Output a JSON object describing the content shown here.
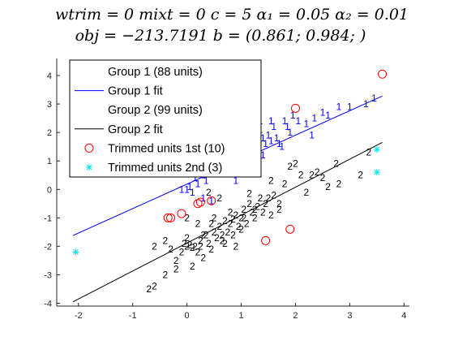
{
  "title": {
    "line1": "wtrim = 0    mixt = 0    c = 5    α₁ = 0.05    α₂ = 0.01",
    "line2": "obj = −213.7191    b = (0.861; 0.984; )"
  },
  "colors": {
    "group1": "#0000ff",
    "group2": "#000000",
    "trimmed1": "#ff0000",
    "trimmed2": "#00e5e5",
    "axis": "#262626"
  },
  "chart_data": {
    "type": "scatter",
    "xlim": [
      -2.4,
      4.1
    ],
    "ylim": [
      -4.1,
      4.6
    ],
    "x_ticks": [
      -2,
      -1,
      0,
      1,
      2,
      3,
      4
    ],
    "y_ticks": [
      -4,
      -3,
      -2,
      -1,
      0,
      1,
      2,
      3,
      4
    ],
    "grid": false,
    "legend_position": "top-left",
    "legend": [
      {
        "label": "Group 1 (88 units)",
        "marker": "1"
      },
      {
        "label": "Group 1 fit",
        "marker": "blue-line"
      },
      {
        "label": "Group 2 (99 units)",
        "marker": "2"
      },
      {
        "label": "Group 2 fit",
        "marker": "black-line"
      },
      {
        "label": "Trimmed units 1st (10)",
        "marker": "red-circle"
      },
      {
        "label": "Trimmed units 2nd (3)",
        "marker": "cyan-asterisk"
      }
    ],
    "series": [
      {
        "name": "Group 1 (88 units)",
        "marker_label": "1",
        "points": [
          [
            0.0,
            0.0
          ],
          [
            0.05,
            0.1
          ],
          [
            0.1,
            -0.1
          ],
          [
            0.2,
            0.2
          ],
          [
            0.3,
            0.5
          ],
          [
            0.35,
            0.3
          ],
          [
            0.4,
            0.8
          ],
          [
            0.45,
            0.6
          ],
          [
            0.5,
            1.2
          ],
          [
            0.55,
            1.0
          ],
          [
            0.6,
            0.9
          ],
          [
            0.65,
            1.3
          ],
          [
            0.7,
            1.1
          ],
          [
            0.75,
            1.5
          ],
          [
            0.8,
            1.4
          ],
          [
            0.85,
            1.6
          ],
          [
            0.9,
            1.8
          ],
          [
            0.95,
            1.5
          ],
          [
            1.0,
            1.7
          ],
          [
            1.05,
            1.9
          ],
          [
            1.1,
            2.2
          ],
          [
            1.15,
            1.6
          ],
          [
            1.2,
            1.9
          ],
          [
            1.25,
            2.0
          ],
          [
            1.3,
            1.7
          ],
          [
            1.35,
            2.1
          ],
          [
            1.4,
            1.8
          ],
          [
            1.45,
            1.6
          ],
          [
            1.5,
            1.9
          ],
          [
            1.55,
            1.7
          ],
          [
            1.6,
            2.2
          ],
          [
            1.65,
            1.8
          ],
          [
            1.7,
            1.6
          ],
          [
            1.75,
            1.5
          ],
          [
            1.8,
            2.4
          ],
          [
            1.85,
            2.2
          ],
          [
            1.9,
            2.0
          ],
          [
            1.95,
            2.6
          ],
          [
            2.05,
            2.4
          ],
          [
            2.2,
            2.3
          ],
          [
            2.35,
            2.5
          ],
          [
            2.5,
            2.7
          ],
          [
            2.6,
            2.6
          ],
          [
            2.8,
            2.9
          ],
          [
            3.0,
            2.9
          ],
          [
            3.3,
            3.0
          ],
          [
            3.45,
            3.2
          ],
          [
            0.9,
            0.3
          ],
          [
            1.2,
            1.3
          ],
          [
            0.6,
            1.6
          ],
          [
            1.4,
            1.2
          ],
          [
            0.3,
            -0.3
          ],
          [
            0.15,
            0.4
          ],
          [
            -0.1,
            0.0
          ],
          [
            1.0,
            2.3
          ],
          [
            1.25,
            1.4
          ],
          [
            2.3,
            1.9
          ],
          [
            0.45,
            -0.4
          ],
          [
            0.8,
            0.7
          ],
          [
            1.55,
            2.4
          ],
          [
            1.05,
            1.1
          ],
          [
            1.35,
            2.4
          ],
          [
            0.7,
            2.0
          ],
          [
            1.15,
            2.8
          ]
        ]
      },
      {
        "name": "Group 2 (99 units)",
        "marker_label": "2",
        "points": [
          [
            -0.7,
            -3.5
          ],
          [
            -0.6,
            -3.4
          ],
          [
            -0.4,
            -3.0
          ],
          [
            -0.2,
            -2.5
          ],
          [
            -0.1,
            -2.2
          ],
          [
            -0.05,
            -1.9
          ],
          [
            0.0,
            -2.0
          ],
          [
            0.05,
            -1.95
          ],
          [
            0.1,
            -2.05
          ],
          [
            0.15,
            -2.0
          ],
          [
            0.2,
            -2.2
          ],
          [
            0.25,
            -1.8
          ],
          [
            0.3,
            -2.4
          ],
          [
            0.35,
            -1.6
          ],
          [
            0.4,
            -1.9
          ],
          [
            0.45,
            -2.1
          ],
          [
            0.5,
            -1.5
          ],
          [
            0.55,
            -1.7
          ],
          [
            0.6,
            -1.3
          ],
          [
            0.65,
            -1.8
          ],
          [
            0.7,
            -1.1
          ],
          [
            0.75,
            -1.5
          ],
          [
            0.8,
            -1.2
          ],
          [
            0.85,
            -1.6
          ],
          [
            0.9,
            -0.9
          ],
          [
            0.95,
            -1.3
          ],
          [
            1.0,
            -1.0
          ],
          [
            1.05,
            -0.7
          ],
          [
            1.1,
            -1.2
          ],
          [
            1.15,
            -0.5
          ],
          [
            1.2,
            -0.8
          ],
          [
            1.25,
            -1.0
          ],
          [
            1.3,
            -0.6
          ],
          [
            1.35,
            -0.3
          ],
          [
            1.4,
            -0.8
          ],
          [
            1.45,
            -0.5
          ],
          [
            1.5,
            -0.3
          ],
          [
            1.55,
            -0.9
          ],
          [
            1.6,
            -0.2
          ],
          [
            1.7,
            -0.5
          ],
          [
            1.8,
            0.2
          ],
          [
            1.9,
            0.8
          ],
          [
            2.0,
            0.9
          ],
          [
            2.1,
            0.5
          ],
          [
            2.2,
            -0.1
          ],
          [
            2.3,
            0.5
          ],
          [
            2.4,
            0.6
          ],
          [
            2.5,
            0.4
          ],
          [
            2.6,
            0.1
          ],
          [
            2.75,
            0.9
          ],
          [
            2.8,
            0.2
          ],
          [
            3.2,
            0.5
          ],
          [
            3.35,
            1.3
          ],
          [
            -0.4,
            -1.8
          ],
          [
            -0.6,
            -2.0
          ],
          [
            -0.2,
            -2.8
          ],
          [
            0.0,
            -1.0
          ],
          [
            0.2,
            -1.2
          ],
          [
            0.1,
            -2.7
          ],
          [
            0.5,
            -1.0
          ],
          [
            1.0,
            -1.4
          ],
          [
            0.9,
            -2.0
          ],
          [
            0.6,
            -0.3
          ],
          [
            0.4,
            -0.1
          ],
          [
            1.25,
            -0.7
          ],
          [
            1.55,
            0.3
          ],
          [
            0.7,
            -1.9
          ],
          [
            0.3,
            -1.6
          ],
          [
            0.0,
            -1.7
          ],
          [
            -0.3,
            -2.1
          ],
          [
            0.8,
            -0.8
          ],
          [
            1.05,
            -1.0
          ],
          [
            0.45,
            -1.2
          ],
          [
            0.65,
            -1.6
          ],
          [
            0.25,
            -2.0
          ],
          [
            0.85,
            -1.05
          ],
          [
            1.15,
            -0.15
          ],
          [
            1.7,
            -0.7
          ]
        ]
      },
      {
        "name": "Trimmed units 1st (10)",
        "marker_label": "circle",
        "points": [
          [
            3.6,
            4.05
          ],
          [
            2.0,
            2.85
          ],
          [
            -0.3,
            -1.0
          ],
          [
            -0.1,
            -0.85
          ],
          [
            0.25,
            -0.45
          ],
          [
            0.45,
            -0.4
          ],
          [
            1.45,
            -1.8
          ],
          [
            1.9,
            -1.4
          ],
          [
            0.2,
            -0.5
          ],
          [
            -0.35,
            -1.0
          ]
        ]
      },
      {
        "name": "Trimmed units 2nd (3)",
        "marker_label": "asterisk",
        "points": [
          [
            -2.05,
            -2.2
          ],
          [
            3.5,
            1.4
          ],
          [
            3.5,
            0.6
          ]
        ]
      }
    ],
    "fits": [
      {
        "name": "Group 1 fit",
        "x": [
          -2.1,
          3.6
        ],
        "y": [
          -1.62,
          3.28
        ]
      },
      {
        "name": "Group 2 fit",
        "x": [
          -2.1,
          3.6
        ],
        "y": [
          -3.95,
          1.65
        ]
      }
    ]
  }
}
